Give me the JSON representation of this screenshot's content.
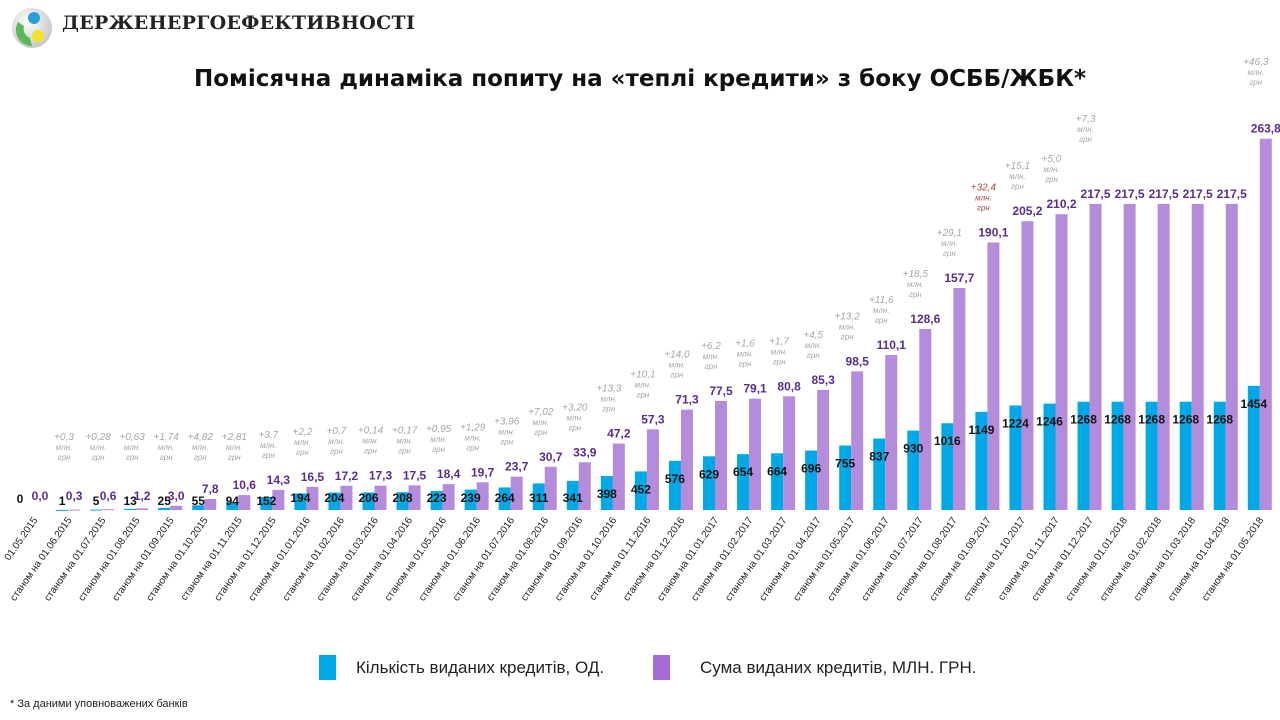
{
  "header": {
    "brand": "ДЕРЖЕНЕРГОЕФЕКТИВНОСТІ",
    "logo_icon": "globe-logo-icon"
  },
  "chart_data": {
    "type": "bar",
    "title": "Помісячна динаміка попиту на «теплі кредити» з боку ОСББ/ЖБК*",
    "xlabel": "",
    "ylabel": "",
    "grid": false,
    "legend_position": "bottom",
    "categories": [
      "01.05.2015",
      "станом на 01.06.2015",
      "станом на 01.07.2015",
      "станом на 01.08.2015",
      "станом на 01.09.2015",
      "станом на 01.10.2015",
      "станом на 01.11.2015",
      "станом на 01.12.2015",
      "станом на 01.01.2016",
      "станом на 01.02.2016",
      "станом на 01.03.2016",
      "станом на 01.04.2016",
      "станом на 01.05.2016",
      "станом на 01.06.2016",
      "станом на 01.07.2016",
      "станом на 01.08.2016",
      "станом на 01.09.2016",
      "станом на 01.10.2016",
      "станом на 01.11.2016",
      "станом на 01.12.2016",
      "станом на 01.01.2017",
      "станом на 01.02.2017",
      "станом на 01.03.2017",
      "станом на 01.04.2017",
      "станом на 01.05.2017",
      "станом на 01.06.2017",
      "станом на 01.07.2017",
      "станом на 01.08.2017",
      "станом на 01.09.2017",
      "станом на 01.10.2017",
      "станом на 01.11.2017",
      "станом на 01.12.2017",
      "станом на 01.01.2018",
      "станом на 01.02.2018",
      "станом на 01.03.2018",
      "станом на 01.04.2018",
      "станом на 01.05.2018"
    ],
    "series": [
      {
        "name": "Кількість виданих кредитів, ОД.",
        "color": "#00a9e6",
        "values": [
          0,
          1,
          5,
          13,
          25,
          55,
          94,
          152,
          194,
          204,
          206,
          208,
          223,
          239,
          264,
          311,
          341,
          398,
          452,
          576,
          629,
          654,
          664,
          696,
          755,
          837,
          930,
          1016,
          1149,
          1224,
          1246,
          1268,
          1268,
          1268,
          1268,
          1268,
          1454
        ],
        "labels": [
          "0",
          "1",
          "5",
          "13",
          "25",
          "55",
          "94",
          "152",
          "194",
          "204",
          "206",
          "208",
          "223",
          "239",
          "264",
          "311",
          "341",
          "398",
          "452",
          "576",
          "629",
          "654",
          "664",
          "696",
          "755",
          "837",
          "930",
          "1016",
          "1149",
          "1224",
          "1246",
          "1268",
          "1268",
          "1268",
          "1268",
          "1268",
          "1454"
        ]
      },
      {
        "name": "Сума виданих кредитів, МЛН. ГРН.",
        "color": "#b58bdc",
        "values": [
          0.0,
          0.3,
          0.6,
          1.2,
          3.0,
          7.8,
          10.6,
          14.3,
          16.5,
          17.2,
          17.3,
          17.5,
          18.4,
          19.7,
          23.7,
          30.7,
          33.9,
          47.2,
          57.3,
          71.3,
          77.5,
          79.1,
          80.8,
          85.3,
          98.5,
          110.1,
          128.6,
          157.7,
          190.1,
          205.2,
          210.2,
          217.5,
          217.5,
          217.5,
          217.5,
          217.5,
          263.8
        ],
        "labels": [
          "0,0",
          "0,3",
          "0,6",
          "1,2",
          "3,0",
          "7,8",
          "10,6",
          "14,3",
          "16,5",
          "17,2",
          "17,3",
          "17,5",
          "18,4",
          "19,7",
          "23,7",
          "30,7",
          "33,9",
          "47,2",
          "57,3",
          "71,3",
          "77,5",
          "79,1",
          "80,8",
          "85,3",
          "98,5",
          "110,1",
          "128,6",
          "157,7",
          "190,1",
          "205,2",
          "210,2",
          "217,5",
          "217,5",
          "217,5",
          "217,5",
          "217,5",
          "263,8"
        ]
      }
    ],
    "increments": [
      {
        "index": 1,
        "text": "+0,3"
      },
      {
        "index": 2,
        "text": "+0,28"
      },
      {
        "index": 3,
        "text": "+0,63"
      },
      {
        "index": 4,
        "text": "+1,74"
      },
      {
        "index": 5,
        "text": "+4,82"
      },
      {
        "index": 6,
        "text": "+2,81"
      },
      {
        "index": 7,
        "text": "+3,7"
      },
      {
        "index": 8,
        "text": "+2,2"
      },
      {
        "index": 9,
        "text": "+0,7"
      },
      {
        "index": 10,
        "text": "+0,14"
      },
      {
        "index": 11,
        "text": "+0,17"
      },
      {
        "index": 12,
        "text": "+0,95"
      },
      {
        "index": 13,
        "text": "+1,29"
      },
      {
        "index": 14,
        "text": "+3,96"
      },
      {
        "index": 15,
        "text": "+7,02"
      },
      {
        "index": 16,
        "text": "+3,20"
      },
      {
        "index": 17,
        "text": "+13,3"
      },
      {
        "index": 18,
        "text": "+10,1"
      },
      {
        "index": 19,
        "text": "+14,0"
      },
      {
        "index": 20,
        "text": "+6,2"
      },
      {
        "index": 21,
        "text": "+1,6"
      },
      {
        "index": 22,
        "text": "+1,7"
      },
      {
        "index": 23,
        "text": "+4,5"
      },
      {
        "index": 24,
        "text": "+13,2"
      },
      {
        "index": 25,
        "text": "+11,6"
      },
      {
        "index": 26,
        "text": "+18,5"
      },
      {
        "index": 27,
        "text": "+29,1"
      },
      {
        "index": 28,
        "text": "+32,4",
        "highlight": true
      },
      {
        "index": 29,
        "text": "+15,1"
      },
      {
        "index": 30,
        "text": "+5,0"
      },
      {
        "index": 31,
        "text": "+7,3"
      },
      {
        "index": 36,
        "text": "+46,3"
      }
    ],
    "increment_unit_lines": [
      "млн.",
      "грн"
    ],
    "increment_color": "#a6a6a6",
    "increment_highlight_color": "#a0504a",
    "value_label_color_amount": "#5b2c8c",
    "value_label_color_count": "#111111",
    "ylim_count": [
      0,
      4450
    ],
    "ylim_amount": [
      0,
      270
    ]
  },
  "legend": {
    "items": [
      {
        "label": "Кількість виданих кредитів, ОД.",
        "color": "#00a9e6"
      },
      {
        "label": "Сума виданих кредитів, МЛН. ГРН.",
        "color": "#a66ad4"
      }
    ]
  },
  "footnote": "* За даними уповноважених банків"
}
